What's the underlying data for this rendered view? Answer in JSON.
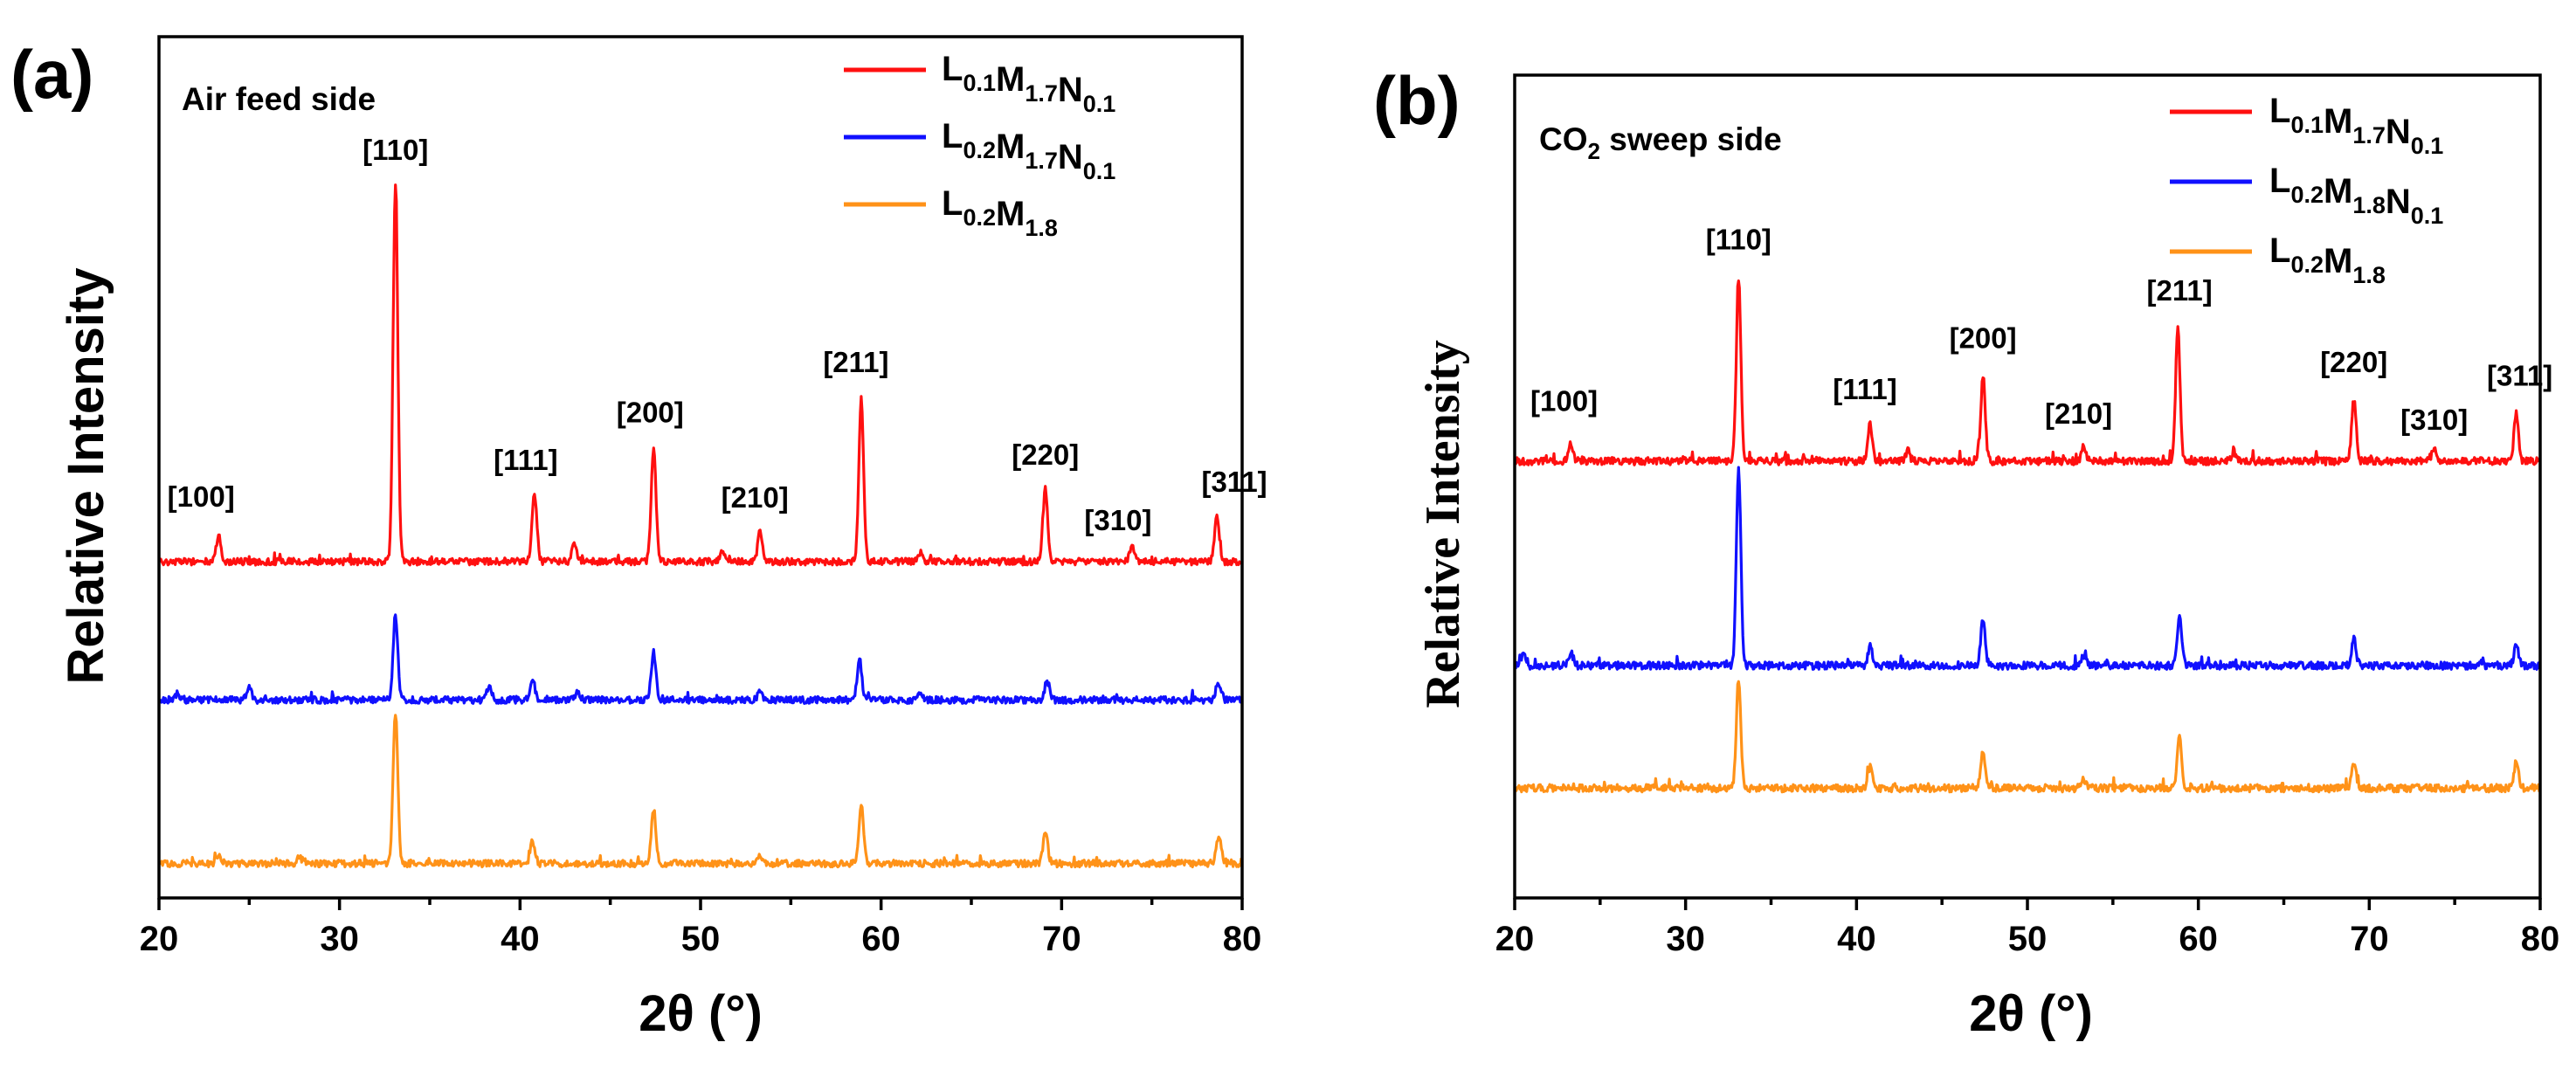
{
  "colors": {
    "red": "#ff1010",
    "blue": "#1010ff",
    "orange": "#ff9218"
  },
  "chart_data": [
    {
      "type": "line",
      "panel": "(a)",
      "annotation": "Air feed side",
      "xlabel": "2θ (°)",
      "ylabel": "Relative Intensity",
      "xlim": [
        20,
        80
      ],
      "xticks": [
        20,
        30,
        40,
        50,
        60,
        70,
        80
      ],
      "legend_position": "top-right",
      "peaks": [
        {
          "label": "[100]",
          "x": 23.3
        },
        {
          "label": "[110]",
          "x": 33.1
        },
        {
          "label": "[111]",
          "x": 40.8
        },
        {
          "label": "[200]",
          "x": 47.4
        },
        {
          "label": "[210]",
          "x": 53.3
        },
        {
          "label": "[211]",
          "x": 58.9
        },
        {
          "label": "[220]",
          "x": 69.1
        },
        {
          "label": "[310]",
          "x": 73.9
        },
        {
          "label": "[311]",
          "x": 78.6
        }
      ],
      "series": [
        {
          "name": "L0.1M1.7N0.1",
          "legend_parts": [
            [
              "L",
              "0.1"
            ],
            [
              "M",
              "1.7"
            ],
            [
              "N",
              "0.1"
            ]
          ],
          "color": "#ff1010",
          "baseline": 0.0,
          "peaks": [
            [
              23.3,
              0.4
            ],
            [
              33.1,
              6.0
            ],
            [
              40.8,
              1.1
            ],
            [
              43.0,
              0.3
            ],
            [
              47.4,
              1.8
            ],
            [
              51.2,
              0.15
            ],
            [
              53.3,
              0.5
            ],
            [
              58.9,
              2.6
            ],
            [
              62.2,
              0.15
            ],
            [
              69.1,
              1.15
            ],
            [
              73.9,
              0.25
            ],
            [
              78.6,
              0.75
            ]
          ]
        },
        {
          "name": "L0.2M1.7N0.1",
          "legend_parts": [
            [
              "L",
              "0.2"
            ],
            [
              "M",
              "1.7"
            ],
            [
              "N",
              "0.1"
            ]
          ],
          "color": "#1010ff",
          "baseline": -2.2,
          "peaks": [
            [
              21.0,
              0.1
            ],
            [
              25.0,
              0.18
            ],
            [
              33.1,
              1.35
            ],
            [
              38.3,
              0.25
            ],
            [
              40.7,
              0.3
            ],
            [
              43.2,
              0.12
            ],
            [
              47.4,
              0.75
            ],
            [
              53.3,
              0.12
            ],
            [
              58.8,
              0.65
            ],
            [
              62.2,
              0.1
            ],
            [
              69.2,
              0.3
            ],
            [
              78.7,
              0.25
            ]
          ]
        },
        {
          "name": "L0.2M1.8",
          "legend_parts": [
            [
              "L",
              "0.2"
            ],
            [
              "M",
              "1.8"
            ]
          ],
          "color": "#ff9218",
          "baseline": -4.8,
          "peaks": [
            [
              23.3,
              0.12
            ],
            [
              27.8,
              0.1
            ],
            [
              33.1,
              2.4
            ],
            [
              40.7,
              0.35
            ],
            [
              47.4,
              0.85
            ],
            [
              53.3,
              0.12
            ],
            [
              58.9,
              0.95
            ],
            [
              69.1,
              0.5
            ],
            [
              78.7,
              0.45
            ]
          ]
        }
      ]
    },
    {
      "type": "line",
      "panel": "(b)",
      "annotation": {
        "base": "CO",
        "sub": "2",
        "rest": " sweep side"
      },
      "xlabel": "2θ (°)",
      "ylabel": "Relative Intensity",
      "xlim": [
        20,
        80
      ],
      "xticks": [
        20,
        30,
        40,
        50,
        60,
        70,
        80
      ],
      "legend_position": "top-right",
      "peaks": [
        {
          "label": "[100]",
          "x": 23.3
        },
        {
          "label": "[110]",
          "x": 33.1
        },
        {
          "label": "[111]",
          "x": 40.8
        },
        {
          "label": "[200]",
          "x": 47.4
        },
        {
          "label": "[210]",
          "x": 53.3
        },
        {
          "label": "[211]",
          "x": 58.9
        },
        {
          "label": "[220]",
          "x": 69.1
        },
        {
          "label": "[310]",
          "x": 73.8
        },
        {
          "label": "[311]",
          "x": 78.6
        }
      ],
      "series": [
        {
          "name": "L0.1M1.7N0.1",
          "legend_parts": [
            [
              "L",
              "0.1"
            ],
            [
              "M",
              "1.7"
            ],
            [
              "N",
              "0.1"
            ]
          ],
          "color": "#ff1010",
          "baseline": 0.0,
          "peaks": [
            [
              23.3,
              0.25
            ],
            [
              33.1,
              2.7
            ],
            [
              40.8,
              0.55
            ],
            [
              43.0,
              0.15
            ],
            [
              47.4,
              1.25
            ],
            [
              53.3,
              0.22
            ],
            [
              58.8,
              1.95
            ],
            [
              62.1,
              0.12
            ],
            [
              69.1,
              0.9
            ],
            [
              73.8,
              0.18
            ],
            [
              78.6,
              0.7
            ]
          ]
        },
        {
          "name": "L0.2M1.8N0.1",
          "legend_parts": [
            [
              "L",
              "0.2"
            ],
            [
              "M",
              "1.8"
            ],
            [
              "N",
              "0.1"
            ]
          ],
          "color": "#1010ff",
          "baseline": -3.0,
          "peaks": [
            [
              20.5,
              0.15
            ],
            [
              23.3,
              0.18
            ],
            [
              33.1,
              2.9
            ],
            [
              40.8,
              0.3
            ],
            [
              47.4,
              0.7
            ],
            [
              53.3,
              0.15
            ],
            [
              58.9,
              0.75
            ],
            [
              69.1,
              0.4
            ],
            [
              78.6,
              0.3
            ]
          ]
        },
        {
          "name": "L0.2M1.8",
          "legend_parts": [
            [
              "L",
              "0.2"
            ],
            [
              "M",
              "1.8"
            ]
          ],
          "color": "#ff9218",
          "baseline": -4.8,
          "peaks": [
            [
              33.1,
              1.6
            ],
            [
              40.8,
              0.3
            ],
            [
              47.4,
              0.55
            ],
            [
              53.3,
              0.12
            ],
            [
              58.9,
              0.75
            ],
            [
              69.1,
              0.4
            ],
            [
              78.6,
              0.38
            ]
          ]
        }
      ]
    }
  ]
}
